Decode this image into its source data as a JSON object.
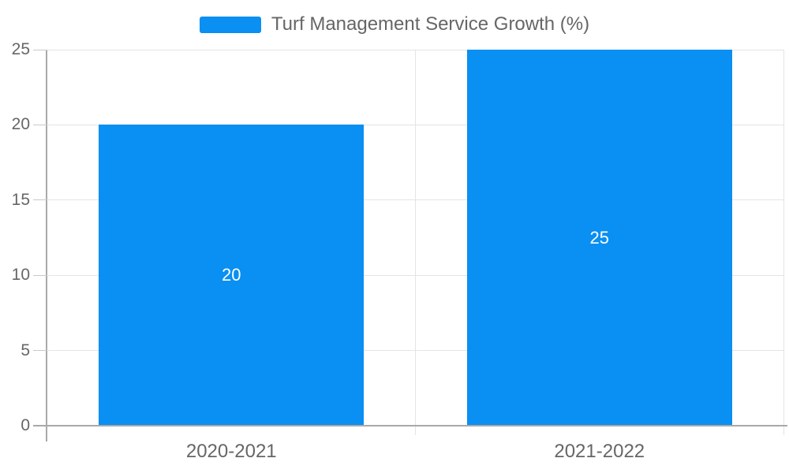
{
  "legend": {
    "position": "top-center"
  },
  "chart_data": {
    "type": "bar",
    "series_name": "Turf Management Service Growth (%)",
    "categories": [
      "2020-2021",
      "2021-2022"
    ],
    "values": [
      20,
      25
    ],
    "data_labels": [
      "20",
      "25"
    ],
    "yticks": [
      0,
      5,
      10,
      15,
      20,
      25
    ],
    "ylim": [
      0,
      25
    ],
    "grid": true,
    "legend_position": "top-center",
    "title": "",
    "xlabel": "",
    "ylabel": "",
    "colors": {
      "bar": "#0a8ff2",
      "grid": "#e4e4e4",
      "tick": "#c9c9c9",
      "axis": "#a9a9a9",
      "text": "#666666",
      "value_label": "#ffffff"
    }
  }
}
